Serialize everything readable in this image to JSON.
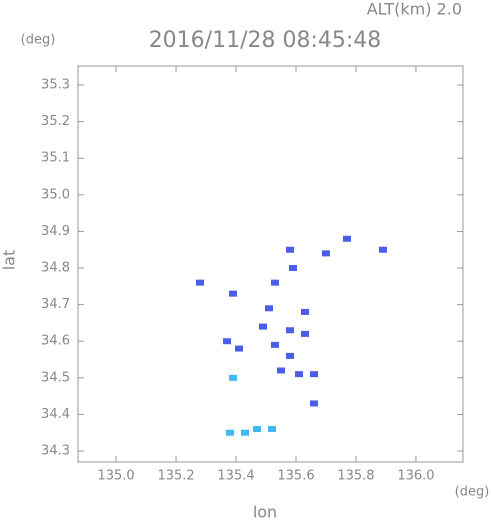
{
  "chart_data": {
    "type": "scatter",
    "title": "2016/11/28 08:45:48",
    "subtitle": "ALT(km) 2.0",
    "x_label": "lon",
    "y_label": "lat",
    "x_unit": "(deg)",
    "y_unit": "(deg)",
    "x": [
      135.77,
      135.89,
      135.7,
      135.58,
      135.59,
      135.53,
      135.28,
      135.39,
      135.51,
      135.63,
      135.49,
      135.58,
      135.63,
      135.53,
      135.58,
      135.55,
      135.61,
      135.41,
      135.37,
      135.66,
      135.66,
      135.39,
      135.38,
      135.43,
      135.47,
      135.52
    ],
    "values": [
      34.88,
      34.85,
      34.84,
      34.85,
      34.8,
      34.76,
      34.76,
      34.73,
      34.69,
      34.68,
      34.64,
      34.63,
      34.62,
      34.59,
      34.56,
      34.52,
      34.51,
      34.58,
      34.6,
      34.51,
      34.43,
      34.5,
      34.35,
      34.35,
      34.36,
      34.36
    ],
    "colors": [
      "#4a5ee8",
      "#4a5ee8",
      "#4a5ee8",
      "#4a5ee8",
      "#4a5ee8",
      "#4a5ee8",
      "#4a5ee8",
      "#4a5ee8",
      "#4a5ee8",
      "#4a5ee8",
      "#4a5ee8",
      "#4a5ee8",
      "#4a5ee8",
      "#4a5ee8",
      "#4a5ee8",
      "#4a5ee8",
      "#4a5ee8",
      "#4a5ee8",
      "#4a5ee8",
      "#4a5ee8",
      "#4a5ee8",
      "#40b8f0",
      "#40b8f0",
      "#40b8f0",
      "#40b8f0",
      "#40b8f0"
    ],
    "xlim": [
      134.873,
      136.157
    ],
    "ylim": [
      34.27,
      35.352
    ],
    "xticks": [
      {
        "value": 135,
        "label": "135.0"
      },
      135.2,
      135.4,
      135.6,
      135.8,
      {
        "value": 136,
        "label": "136.0"
      }
    ],
    "yticks": [
      34.3,
      34.4,
      34.5,
      34.6,
      34.7,
      34.8,
      34.9,
      {
        "value": 35,
        "label": "35.0"
      },
      35.1,
      35.2,
      35.3
    ]
  }
}
